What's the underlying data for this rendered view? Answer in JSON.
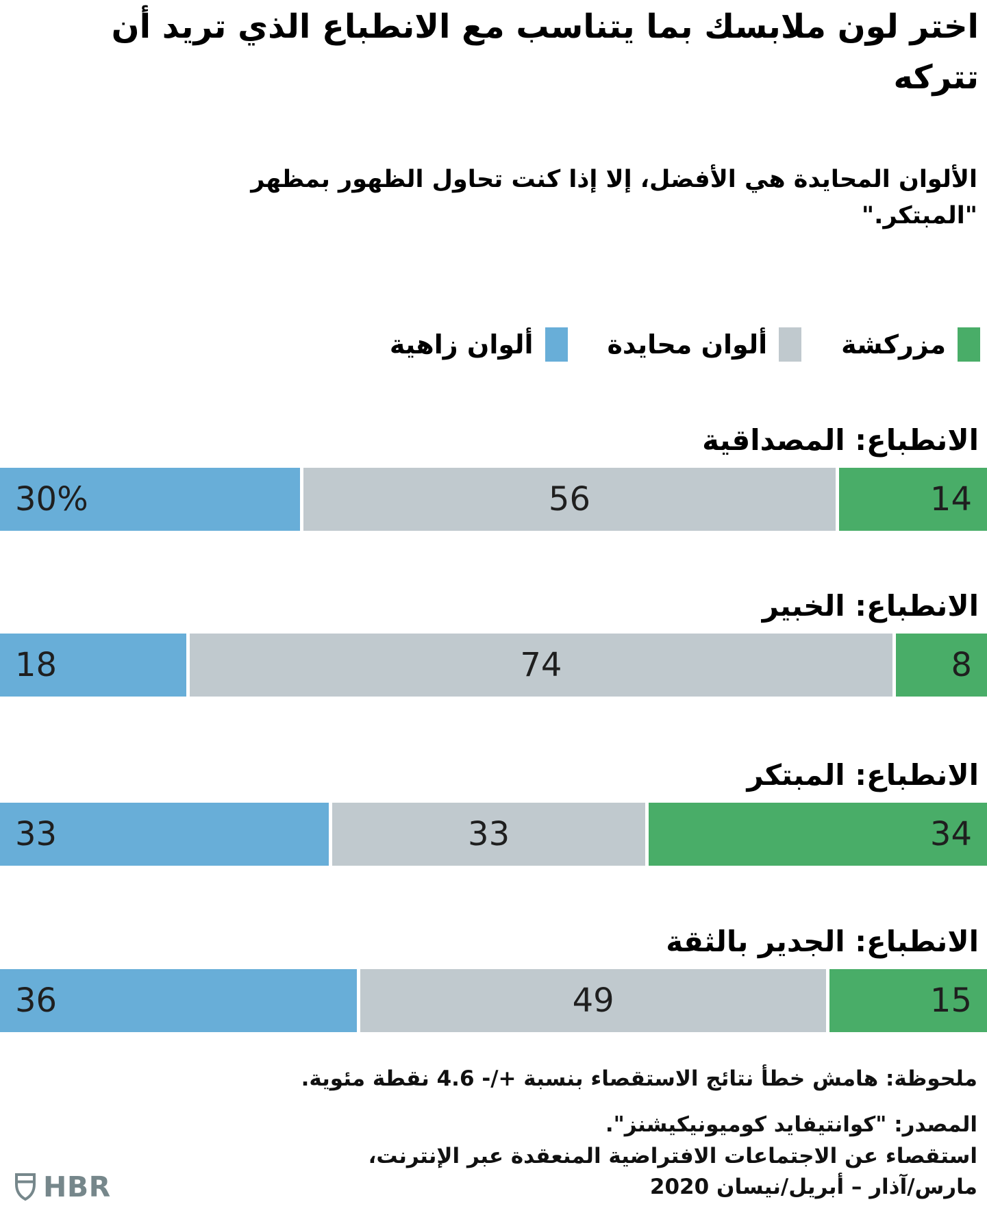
{
  "title_lines": [
    "اختر لون ملابسك بما يتناسب مع الانطباع الذي تريد أن",
    "تتركه"
  ],
  "subtitle_lines": [
    "الألوان المحايدة هي الأفضل، إلا إذا كنت تحاول الظهور بمظهر",
    "\"المبتكر.\""
  ],
  "legend": [
    {
      "label": "مزركشة",
      "color": "#49ad68",
      "key": "patterned"
    },
    {
      "label": "ألوان محايدة",
      "color": "#c0c9ce",
      "key": "neutral"
    },
    {
      "label": "ألوان زاهية",
      "color": "#68aed8",
      "key": "bright"
    }
  ],
  "chart_data": {
    "type": "bar",
    "stacked": true,
    "orientation": "horizontal",
    "direction": "rtl",
    "title": "اختر لون ملابسك بما يتناسب مع الانطباع الذي تريد أن تتركه",
    "subtitle": "الألوان المحايدة هي الأفضل، إلا إذا كنت تحاول الظهور بمظهر \"المبتكر.\"",
    "categories": [
      "الانطباع: المصداقية",
      "الانطباع: الخبير",
      "الانطباع: المبتكر",
      "الانطباع: الجدير بالثقة"
    ],
    "series": [
      {
        "name": "مزركشة",
        "color": "#49ad68",
        "values": [
          14,
          8,
          34,
          15
        ],
        "labels": [
          "14",
          "8",
          "34",
          "15"
        ]
      },
      {
        "name": "ألوان محايدة",
        "color": "#c0c9ce",
        "values": [
          56,
          74,
          33,
          49
        ],
        "labels": [
          "56",
          "74",
          "33",
          "49"
        ]
      },
      {
        "name": "ألوان زاهية",
        "color": "#68aed8",
        "values": [
          30,
          18,
          33,
          36
        ],
        "labels": [
          "30%",
          "18",
          "33",
          "36"
        ]
      }
    ],
    "xlim": [
      0,
      100
    ],
    "total": 100,
    "legend_position": "top-right",
    "grid": false
  },
  "note": "ملحوظة: هامش خطأ نتائج الاستقصاء بنسبة +/- 4.6 نقطة مئوية.",
  "source_lines": [
    "المصدر: \"كوانتيفايد كوميونيكيشنز\".",
    "استقصاء عن الاجتماعات الافتراضية المنعقدة عبر الإنترنت،",
    "مارس/آذار – أبريل/نيسان 2020"
  ],
  "logo_text": "HBR",
  "colors": {
    "bright_blue": "#68aed8",
    "neutral_gray": "#c0c9ce",
    "patterned_green": "#49ad68",
    "value_text": "#1f1f1f",
    "logo_gray": "#76878b"
  }
}
